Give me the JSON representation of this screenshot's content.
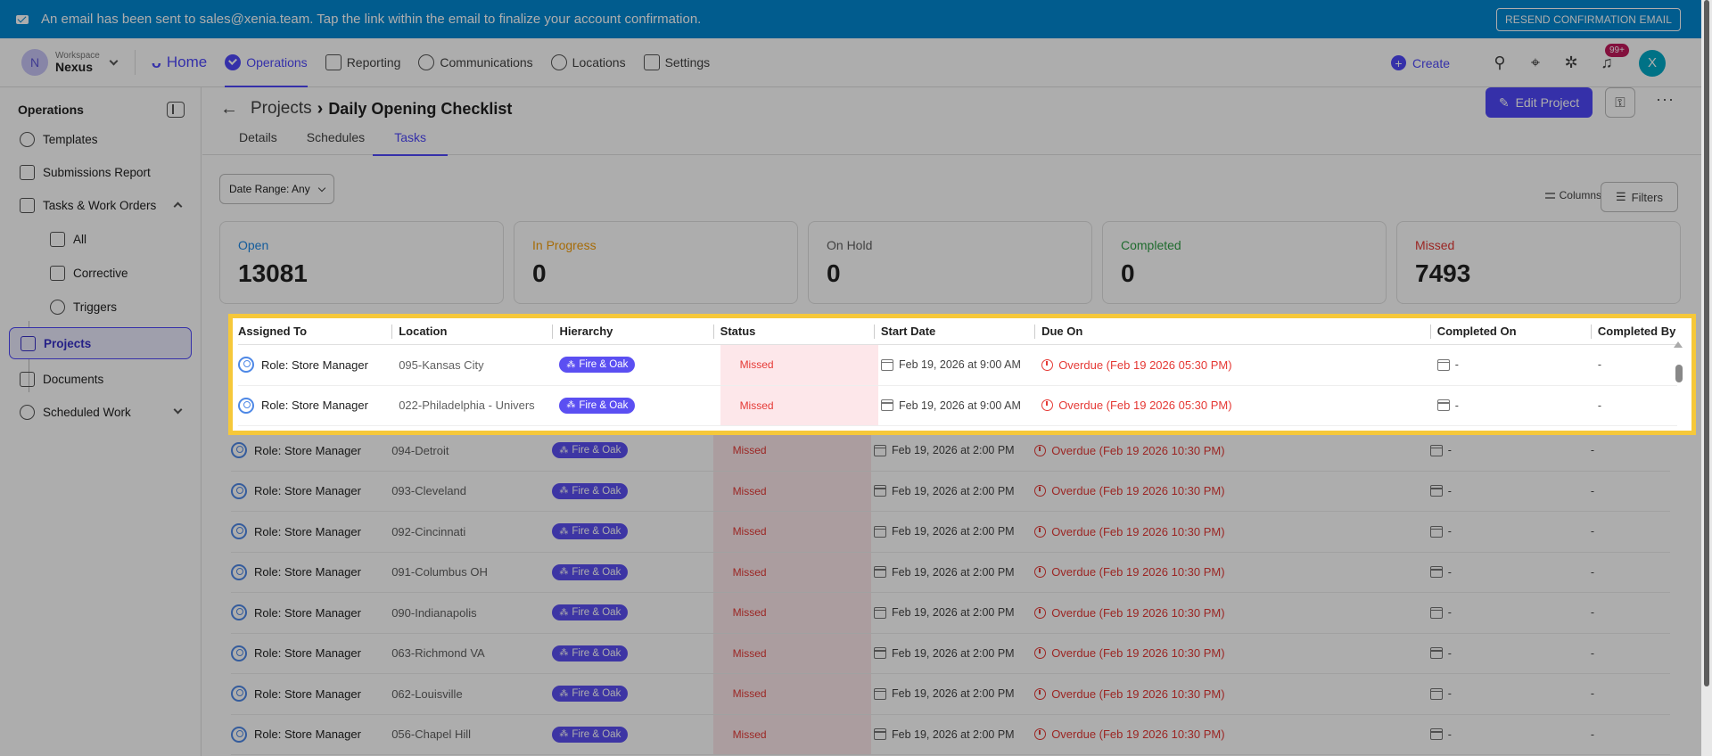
{
  "banner": {
    "message": "An email has been sent to sales@xenia.team. Tap the link within the email to finalize your account confirmation.",
    "resend_label": "RESEND CONFIRMATION EMAIL"
  },
  "workspace": {
    "initial": "N",
    "caption": "Workspace",
    "name": "Nexus"
  },
  "nav": {
    "home": "Home",
    "items": [
      "Operations",
      "Reporting",
      "Communications",
      "Locations",
      "Settings"
    ],
    "create": "Create",
    "notifications_badge": "99+",
    "user_initial": "X"
  },
  "sidebar": {
    "title": "Operations",
    "items": [
      "Templates",
      "Submissions Report",
      "Tasks & Work Orders",
      "All",
      "Corrective",
      "Triggers",
      "Projects",
      "Documents",
      "Scheduled Work"
    ]
  },
  "page": {
    "breadcrumb_parent": "Projects",
    "breadcrumb_current": "Daily Opening Checklist",
    "edit_label": "Edit Project",
    "tabs": [
      "Details",
      "Schedules",
      "Tasks"
    ],
    "date_range": "Date Range: Any",
    "columns_label": "Columns",
    "filters_label": "Filters"
  },
  "stats": [
    {
      "label": "Open",
      "value": "13081",
      "color": "#1e88e5"
    },
    {
      "label": "In Progress",
      "value": "0",
      "color": "#f59e0b"
    },
    {
      "label": "On Hold",
      "value": "0",
      "color": "#616161"
    },
    {
      "label": "Completed",
      "value": "0",
      "color": "#2e9e44"
    },
    {
      "label": "Missed",
      "value": "7493",
      "color": "#e53935"
    }
  ],
  "table": {
    "columns": [
      "Assigned To",
      "Location",
      "Hierarchy",
      "Status",
      "Start Date",
      "Due On",
      "Completed On",
      "Completed By"
    ],
    "rows": [
      {
        "assigned": "Role: Store Manager",
        "location": "095-Kansas City",
        "hierarchy": "Fire & Oak",
        "status": "Missed",
        "start": "Feb 19, 2026 at 9:00 AM",
        "due": "Overdue (Feb 19 2026 05:30 PM)",
        "completed_on": "-",
        "completed_by": "-"
      },
      {
        "assigned": "Role: Store Manager",
        "location": "022-Philadelphia - Univers",
        "hierarchy": "Fire & Oak",
        "status": "Missed",
        "start": "Feb 19, 2026 at 9:00 AM",
        "due": "Overdue (Feb 19 2026 05:30 PM)",
        "completed_on": "-",
        "completed_by": "-"
      },
      {
        "assigned": "Role: Store Manager",
        "location": "094-Detroit",
        "hierarchy": "Fire & Oak",
        "status": "Missed",
        "start": "Feb 19, 2026 at 2:00 PM",
        "due": "Overdue (Feb 19 2026 10:30 PM)",
        "completed_on": "-",
        "completed_by": "-"
      },
      {
        "assigned": "Role: Store Manager",
        "location": "093-Cleveland",
        "hierarchy": "Fire & Oak",
        "status": "Missed",
        "start": "Feb 19, 2026 at 2:00 PM",
        "due": "Overdue (Feb 19 2026 10:30 PM)",
        "completed_on": "-",
        "completed_by": "-"
      },
      {
        "assigned": "Role: Store Manager",
        "location": "092-Cincinnati",
        "hierarchy": "Fire & Oak",
        "status": "Missed",
        "start": "Feb 19, 2026 at 2:00 PM",
        "due": "Overdue (Feb 19 2026 10:30 PM)",
        "completed_on": "-",
        "completed_by": "-"
      },
      {
        "assigned": "Role: Store Manager",
        "location": "091-Columbus OH",
        "hierarchy": "Fire & Oak",
        "status": "Missed",
        "start": "Feb 19, 2026 at 2:00 PM",
        "due": "Overdue (Feb 19 2026 10:30 PM)",
        "completed_on": "-",
        "completed_by": "-"
      },
      {
        "assigned": "Role: Store Manager",
        "location": "090-Indianapolis",
        "hierarchy": "Fire & Oak",
        "status": "Missed",
        "start": "Feb 19, 2026 at 2:00 PM",
        "due": "Overdue (Feb 19 2026 10:30 PM)",
        "completed_on": "-",
        "completed_by": "-"
      },
      {
        "assigned": "Role: Store Manager",
        "location": "063-Richmond VA",
        "hierarchy": "Fire & Oak",
        "status": "Missed",
        "start": "Feb 19, 2026 at 2:00 PM",
        "due": "Overdue (Feb 19 2026 10:30 PM)",
        "completed_on": "-",
        "completed_by": "-"
      },
      {
        "assigned": "Role: Store Manager",
        "location": "062-Louisville",
        "hierarchy": "Fire & Oak",
        "status": "Missed",
        "start": "Feb 19, 2026 at 2:00 PM",
        "due": "Overdue (Feb 19 2026 10:30 PM)",
        "completed_on": "-",
        "completed_by": "-"
      },
      {
        "assigned": "Role: Store Manager",
        "location": "056-Chapel Hill",
        "hierarchy": "Fire & Oak",
        "status": "Missed",
        "start": "Feb 19, 2026 at 2:00 PM",
        "due": "Overdue (Feb 19 2026 10:30 PM)",
        "completed_on": "-",
        "completed_by": "-"
      }
    ]
  }
}
